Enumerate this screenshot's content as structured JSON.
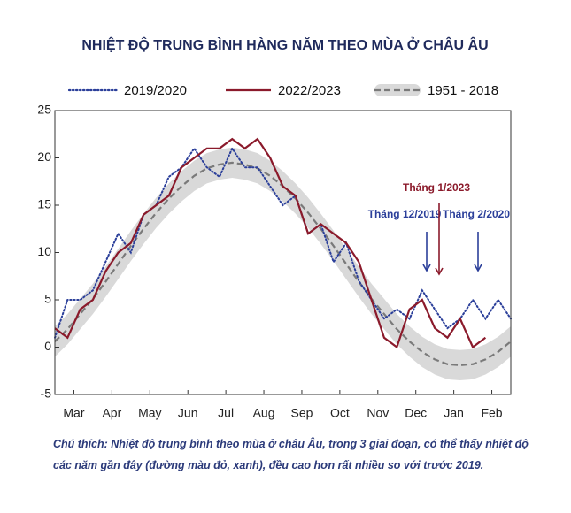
{
  "chart_data": {
    "type": "line",
    "title": "NHIỆT ĐỘ TRUNG BÌNH HÀNG NĂM THEO MÙA Ở CHÂU ÂU",
    "note": "Chú thích: Nhiệt độ trung bình theo mùa ở châu Âu, trong 3 giai đoạn, có thể thấy nhiệt độ các năm gần đây (đường màu đỏ, xanh), đều cao hơn rất nhiều so với trước 2019.",
    "x": [
      0,
      10,
      20,
      30,
      40,
      50,
      60,
      70,
      80,
      90,
      100,
      110,
      120,
      130,
      140,
      150,
      160,
      170,
      180,
      190,
      200,
      210,
      220,
      230,
      240,
      250,
      260,
      270,
      280,
      290,
      300,
      310,
      320,
      330,
      340,
      350,
      360
    ],
    "xlim": [
      0,
      360
    ],
    "xticks": [
      {
        "value": 15,
        "label": "Mar"
      },
      {
        "value": 45,
        "label": "Apr"
      },
      {
        "value": 75,
        "label": "May"
      },
      {
        "value": 105,
        "label": "Jun"
      },
      {
        "value": 135,
        "label": "Jul"
      },
      {
        "value": 165,
        "label": "Aug"
      },
      {
        "value": 195,
        "label": "Sep"
      },
      {
        "value": 225,
        "label": "Oct"
      },
      {
        "value": 255,
        "label": "Nov"
      },
      {
        "value": 285,
        "label": "Dec"
      },
      {
        "value": 315,
        "label": "Jan"
      },
      {
        "value": 345,
        "label": "Feb"
      }
    ],
    "ylim": [
      -5,
      25
    ],
    "yticks": [
      -5,
      0,
      5,
      10,
      15,
      20,
      25
    ],
    "grid": false,
    "series": [
      {
        "name": "2019/2020",
        "color": "#2b3f9a",
        "style": "dotted",
        "values": [
          1,
          5,
          5,
          6,
          9,
          12,
          10,
          14,
          15,
          18,
          19,
          21,
          19,
          18,
          21,
          19,
          19,
          17,
          15,
          16,
          12,
          13,
          9,
          11,
          7,
          5,
          3,
          4,
          3,
          6,
          4,
          2,
          3,
          5,
          3,
          5,
          3
        ]
      },
      {
        "name": "2022/2023",
        "color": "#8b1a2b",
        "style": "solid",
        "values": [
          2,
          1,
          4,
          5,
          8,
          10,
          11,
          14,
          15,
          16,
          19,
          20,
          21,
          21,
          22,
          21,
          22,
          20,
          17,
          16,
          12,
          13,
          12,
          11,
          9,
          5,
          1,
          0,
          4,
          5,
          2,
          1,
          3,
          0,
          1,
          null,
          null
        ]
      },
      {
        "name": "1951 - 2018",
        "color": "#7a7a7a",
        "style": "dashed",
        "band_color": "#d9d9d9",
        "values": [
          0.6,
          1.9,
          3.5,
          5.1,
          6.9,
          8.8,
          10.7,
          12.5,
          14.2,
          15.7,
          17.0,
          18.1,
          18.9,
          19.3,
          19.5,
          19.3,
          18.9,
          18.1,
          17.0,
          15.7,
          14.2,
          12.5,
          10.7,
          8.8,
          6.9,
          5.1,
          3.5,
          1.9,
          0.6,
          -0.5,
          -1.3,
          -1.8,
          -1.9,
          -1.8,
          -1.3,
          -0.5,
          0.6
        ],
        "band_lower": [
          -1.0,
          0.3,
          1.9,
          3.5,
          5.3,
          7.2,
          9.1,
          10.9,
          12.6,
          14.1,
          15.4,
          16.5,
          17.3,
          17.7,
          17.9,
          17.7,
          17.3,
          16.5,
          15.4,
          14.1,
          12.6,
          10.9,
          9.1,
          7.2,
          5.3,
          3.5,
          1.9,
          0.3,
          -1.0,
          -2.1,
          -2.9,
          -3.4,
          -3.5,
          -3.4,
          -2.9,
          -2.1,
          -1.0
        ],
        "band_upper": [
          2.2,
          3.5,
          5.1,
          6.7,
          8.5,
          10.4,
          12.3,
          14.1,
          15.8,
          17.3,
          18.6,
          19.7,
          20.5,
          20.9,
          21.1,
          20.9,
          20.5,
          19.7,
          18.6,
          17.3,
          15.8,
          14.1,
          12.3,
          10.4,
          8.5,
          6.7,
          5.1,
          3.5,
          2.2,
          1.1,
          0.3,
          -0.2,
          -0.3,
          -0.2,
          0.3,
          1.1,
          2.2
        ]
      }
    ],
    "annotations": [
      {
        "text": "Tháng 12/2019",
        "color": "#2b3f9a"
      },
      {
        "text": "Tháng 1/2023",
        "color": "#8b1a2b"
      },
      {
        "text": "Tháng 2/2020",
        "color": "#2b3f9a"
      }
    ]
  }
}
